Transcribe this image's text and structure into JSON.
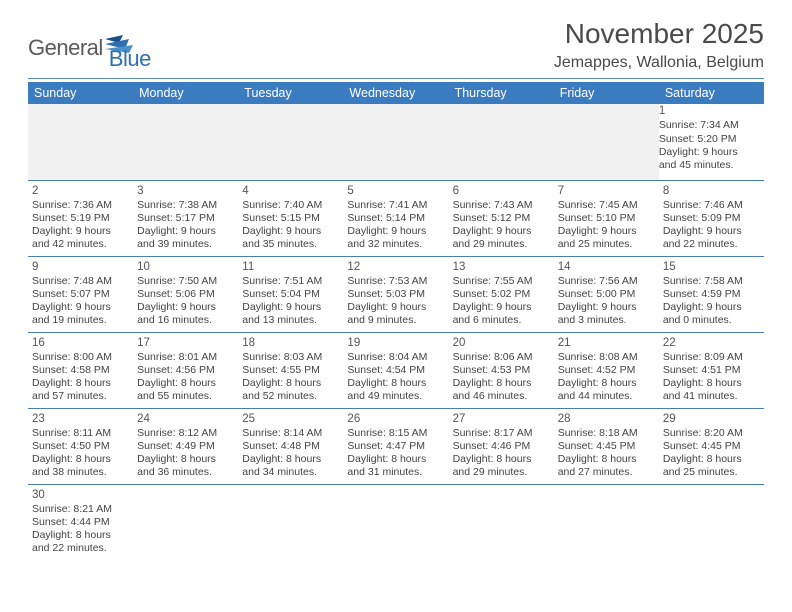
{
  "logo": {
    "part1": "General",
    "part2": "Blue"
  },
  "title": "November 2025",
  "location": "Jemappes, Wallonia, Belgium",
  "colors": {
    "header_bg": "#3b7bbf",
    "header_text": "#ffffff",
    "divider": "#4a7db5",
    "logo_gray": "#5a5a5a",
    "logo_blue": "#2f6fb0",
    "text": "#444444",
    "spacer_bg": "#f1f1f1"
  },
  "daynames": [
    "Sunday",
    "Monday",
    "Tuesday",
    "Wednesday",
    "Thursday",
    "Friday",
    "Saturday"
  ],
  "weeks": [
    [
      null,
      null,
      null,
      null,
      null,
      null,
      {
        "n": "1",
        "sr": "7:34 AM",
        "ss": "5:20 PM",
        "dh": "9",
        "dm": "45"
      }
    ],
    [
      {
        "n": "2",
        "sr": "7:36 AM",
        "ss": "5:19 PM",
        "dh": "9",
        "dm": "42"
      },
      {
        "n": "3",
        "sr": "7:38 AM",
        "ss": "5:17 PM",
        "dh": "9",
        "dm": "39"
      },
      {
        "n": "4",
        "sr": "7:40 AM",
        "ss": "5:15 PM",
        "dh": "9",
        "dm": "35"
      },
      {
        "n": "5",
        "sr": "7:41 AM",
        "ss": "5:14 PM",
        "dh": "9",
        "dm": "32"
      },
      {
        "n": "6",
        "sr": "7:43 AM",
        "ss": "5:12 PM",
        "dh": "9",
        "dm": "29"
      },
      {
        "n": "7",
        "sr": "7:45 AM",
        "ss": "5:10 PM",
        "dh": "9",
        "dm": "25"
      },
      {
        "n": "8",
        "sr": "7:46 AM",
        "ss": "5:09 PM",
        "dh": "9",
        "dm": "22"
      }
    ],
    [
      {
        "n": "9",
        "sr": "7:48 AM",
        "ss": "5:07 PM",
        "dh": "9",
        "dm": "19"
      },
      {
        "n": "10",
        "sr": "7:50 AM",
        "ss": "5:06 PM",
        "dh": "9",
        "dm": "16"
      },
      {
        "n": "11",
        "sr": "7:51 AM",
        "ss": "5:04 PM",
        "dh": "9",
        "dm": "13"
      },
      {
        "n": "12",
        "sr": "7:53 AM",
        "ss": "5:03 PM",
        "dh": "9",
        "dm": "9"
      },
      {
        "n": "13",
        "sr": "7:55 AM",
        "ss": "5:02 PM",
        "dh": "9",
        "dm": "6"
      },
      {
        "n": "14",
        "sr": "7:56 AM",
        "ss": "5:00 PM",
        "dh": "9",
        "dm": "3"
      },
      {
        "n": "15",
        "sr": "7:58 AM",
        "ss": "4:59 PM",
        "dh": "9",
        "dm": "0"
      }
    ],
    [
      {
        "n": "16",
        "sr": "8:00 AM",
        "ss": "4:58 PM",
        "dh": "8",
        "dm": "57"
      },
      {
        "n": "17",
        "sr": "8:01 AM",
        "ss": "4:56 PM",
        "dh": "8",
        "dm": "55"
      },
      {
        "n": "18",
        "sr": "8:03 AM",
        "ss": "4:55 PM",
        "dh": "8",
        "dm": "52"
      },
      {
        "n": "19",
        "sr": "8:04 AM",
        "ss": "4:54 PM",
        "dh": "8",
        "dm": "49"
      },
      {
        "n": "20",
        "sr": "8:06 AM",
        "ss": "4:53 PM",
        "dh": "8",
        "dm": "46"
      },
      {
        "n": "21",
        "sr": "8:08 AM",
        "ss": "4:52 PM",
        "dh": "8",
        "dm": "44"
      },
      {
        "n": "22",
        "sr": "8:09 AM",
        "ss": "4:51 PM",
        "dh": "8",
        "dm": "41"
      }
    ],
    [
      {
        "n": "23",
        "sr": "8:11 AM",
        "ss": "4:50 PM",
        "dh": "8",
        "dm": "38"
      },
      {
        "n": "24",
        "sr": "8:12 AM",
        "ss": "4:49 PM",
        "dh": "8",
        "dm": "36"
      },
      {
        "n": "25",
        "sr": "8:14 AM",
        "ss": "4:48 PM",
        "dh": "8",
        "dm": "34"
      },
      {
        "n": "26",
        "sr": "8:15 AM",
        "ss": "4:47 PM",
        "dh": "8",
        "dm": "31"
      },
      {
        "n": "27",
        "sr": "8:17 AM",
        "ss": "4:46 PM",
        "dh": "8",
        "dm": "29"
      },
      {
        "n": "28",
        "sr": "8:18 AM",
        "ss": "4:45 PM",
        "dh": "8",
        "dm": "27"
      },
      {
        "n": "29",
        "sr": "8:20 AM",
        "ss": "4:45 PM",
        "dh": "8",
        "dm": "25"
      }
    ],
    [
      {
        "n": "30",
        "sr": "8:21 AM",
        "ss": "4:44 PM",
        "dh": "8",
        "dm": "22"
      },
      null,
      null,
      null,
      null,
      null,
      null
    ]
  ],
  "labels": {
    "sunrise": "Sunrise:",
    "sunset": "Sunset:",
    "daylight": "Daylight:",
    "hours": "hours",
    "and": "and",
    "minutes": "minutes."
  }
}
